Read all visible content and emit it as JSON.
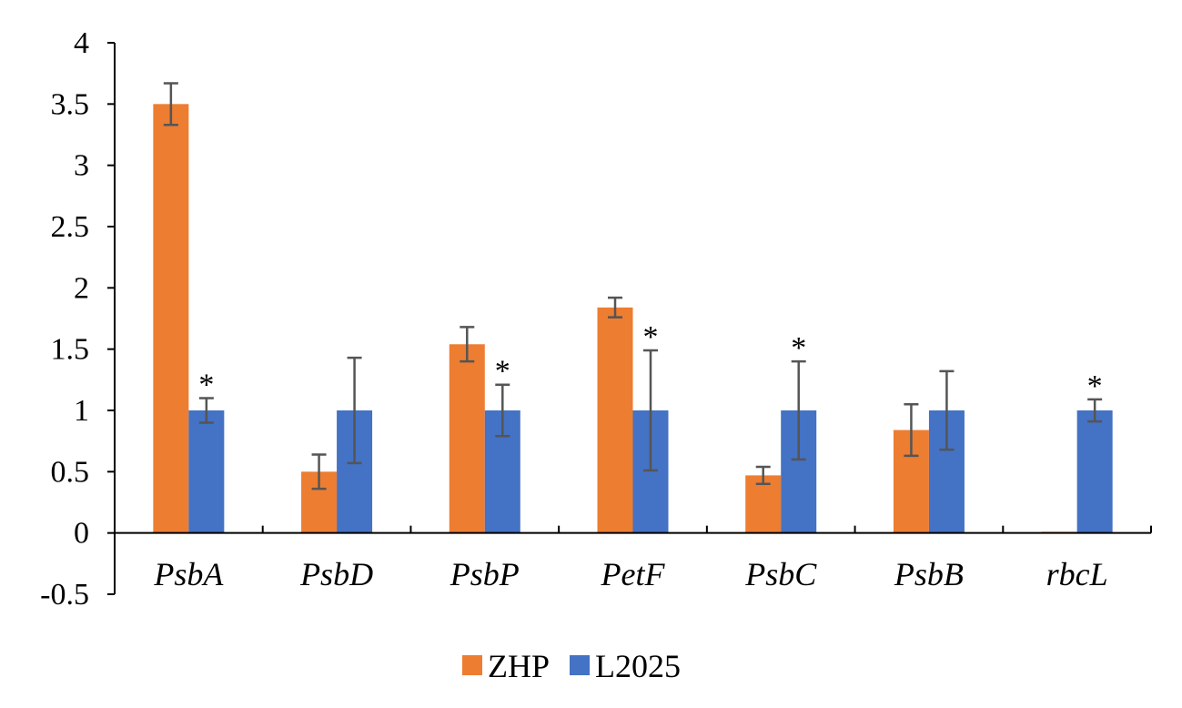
{
  "chart_data": {
    "type": "bar",
    "title": "",
    "xlabel": "",
    "ylabel": "",
    "categories": [
      "PsbA",
      "PsbD",
      "PsbP",
      "PetF",
      "PsbC",
      "PsbB",
      "rbcL"
    ],
    "series": [
      {
        "name": "ZHP",
        "color": "#ED7D31",
        "values": [
          3.5,
          0.5,
          1.54,
          1.84,
          0.47,
          0.84,
          0.01
        ],
        "errors": [
          0.17,
          0.14,
          0.14,
          0.08,
          0.07,
          0.21,
          0.0
        ]
      },
      {
        "name": "L2025",
        "color": "#4472C4",
        "values": [
          1.0,
          1.0,
          1.0,
          1.0,
          1.0,
          1.0,
          1.0
        ],
        "errors": [
          0.1,
          0.43,
          0.21,
          0.49,
          0.4,
          0.32,
          0.09
        ]
      }
    ],
    "significance": [
      {
        "category": "PsbA",
        "series": "L2025",
        "mark": "*"
      },
      {
        "category": "PsbP",
        "series": "L2025",
        "mark": "*"
      },
      {
        "category": "PetF",
        "series": "L2025",
        "mark": "*"
      },
      {
        "category": "PsbC",
        "series": "L2025",
        "mark": "*"
      },
      {
        "category": "rbcL",
        "series": "L2025",
        "mark": "*"
      }
    ],
    "ylim": [
      -0.5,
      4
    ],
    "yticks": [
      -0.5,
      0,
      0.5,
      1,
      1.5,
      2,
      2.5,
      3,
      3.5,
      4
    ],
    "ytick_labels": [
      "-0.5",
      "0",
      "0.5",
      "1",
      "1.5",
      "2",
      "2.5",
      "3",
      "3.5",
      "4"
    ],
    "grid": false,
    "legend_position": "bottom"
  }
}
